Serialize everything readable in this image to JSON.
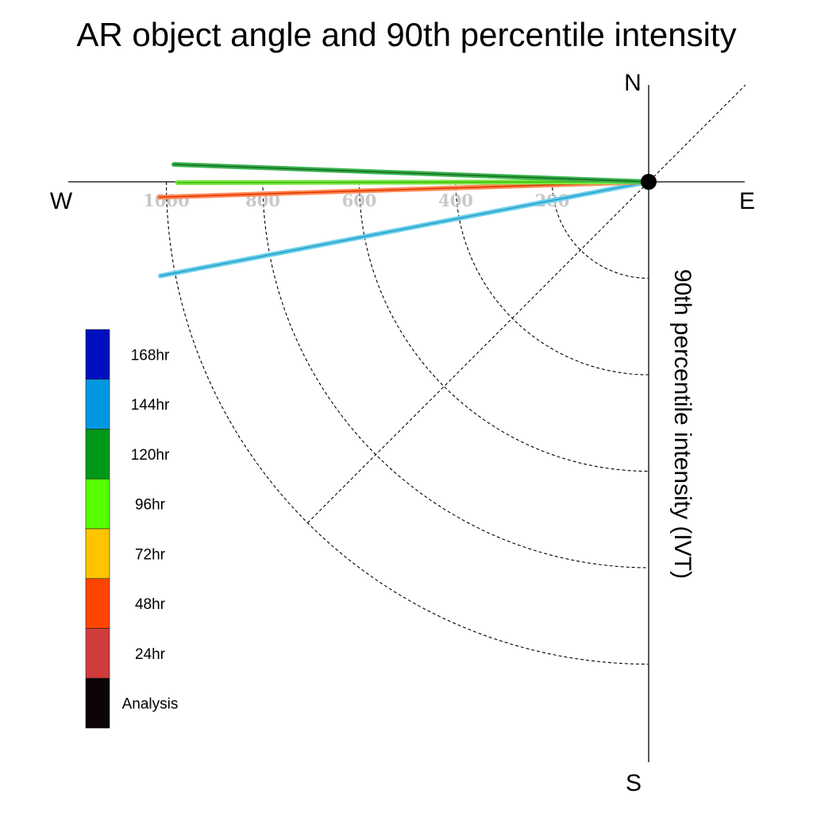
{
  "chart_data": {
    "type": "polar-line",
    "title": "AR object angle and 90th percentile intensity",
    "ylabel": "90th percentile intensity (IVT)",
    "compass": {
      "north": "N",
      "south": "S",
      "east": "E",
      "west": "W"
    },
    "radial_ticks": [
      200,
      400,
      600,
      800,
      1000
    ],
    "radial_range": [
      0,
      1000
    ],
    "grid": true,
    "legend_position": "bottom-left",
    "legend": [
      {
        "label": "168hr",
        "color": "#0010c0"
      },
      {
        "label": "144hr",
        "color": "#0098e0"
      },
      {
        "label": "120hr",
        "color": "#009818"
      },
      {
        "label": "96hr",
        "color": "#58ff00"
      },
      {
        "label": "72hr",
        "color": "#ffc400"
      },
      {
        "label": "48hr",
        "color": "#ff4400"
      },
      {
        "label": "24hr",
        "color": "#d03c3c"
      },
      {
        "label": "Analysis",
        "color": "#0c0408"
      }
    ],
    "series": [
      {
        "legend_label": "144hr",
        "color": "#6ad0ec",
        "core_color": "#2a9ec8",
        "angle_deg": -169.1,
        "intensity": 1031
      },
      {
        "legend_label": "48hr",
        "color": "#ff8a5a",
        "core_color": "#e03a00",
        "angle_deg": -178.2,
        "intensity": 1015
      },
      {
        "legend_label": "96hr",
        "color": "#7ce644",
        "core_color": "#3cbe10",
        "angle_deg": -179.9,
        "intensity": 977
      },
      {
        "legend_label": "120hr",
        "color": "#3cb250",
        "core_color": "#14701e",
        "angle_deg": 177.9,
        "intensity": 985
      }
    ]
  }
}
